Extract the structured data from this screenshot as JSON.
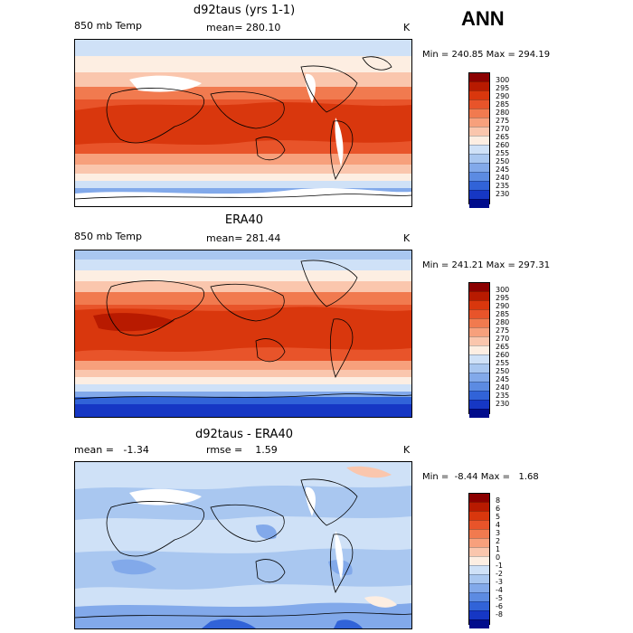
{
  "season": "ANN",
  "panels": [
    {
      "title": "d92taus (yrs 1-1)",
      "left_label": "850 mb Temp",
      "center_label": "mean= 280.10",
      "right_label": "K",
      "minmax": "Min = 240.85 Max = 294.19",
      "colorbar": {
        "levels": [
          "300",
          "295",
          "290",
          "285",
          "280",
          "275",
          "270",
          "265",
          "260",
          "255",
          "250",
          "245",
          "240",
          "235",
          "230"
        ],
        "colors": [
          "#8b0000",
          "#b81a00",
          "#d9370d",
          "#e8542a",
          "#f17a4f",
          "#f7a07c",
          "#fac6ad",
          "#fdeee2",
          "#cfe1f7",
          "#a9c7f0",
          "#82a9ea",
          "#5c8be2",
          "#3163d8",
          "#1637c4",
          "#000c8c"
        ]
      }
    },
    {
      "title": "ERA40",
      "left_label": "850 mb Temp",
      "center_label": "mean= 281.44",
      "right_label": "K",
      "minmax": "Min = 241.21 Max = 297.31",
      "colorbar": {
        "levels": [
          "300",
          "295",
          "290",
          "285",
          "280",
          "275",
          "270",
          "265",
          "260",
          "255",
          "250",
          "245",
          "240",
          "235",
          "230"
        ],
        "colors": [
          "#8b0000",
          "#b81a00",
          "#d9370d",
          "#e8542a",
          "#f17a4f",
          "#f7a07c",
          "#fac6ad",
          "#fdeee2",
          "#cfe1f7",
          "#a9c7f0",
          "#82a9ea",
          "#5c8be2",
          "#3163d8",
          "#1637c4",
          "#000c8c"
        ]
      }
    },
    {
      "title": "d92taus - ERA40",
      "left_label": "mean =   -1.34",
      "center_label": "rmse =    1.59",
      "right_label": "K",
      "minmax": "Min =  -8.44 Max =   1.68",
      "colorbar": {
        "levels": [
          "8",
          "6",
          "5",
          "4",
          "3",
          "2",
          "1",
          "0",
          "-1",
          "-2",
          "-3",
          "-4",
          "-5",
          "-6",
          "-8"
        ],
        "colors": [
          "#8b0000",
          "#b81a00",
          "#d9370d",
          "#e8542a",
          "#f17a4f",
          "#f7a07c",
          "#fac6ad",
          "#fdeee2",
          "#cfe1f7",
          "#a9c7f0",
          "#82a9ea",
          "#5c8be2",
          "#3163d8",
          "#1637c4",
          "#000c8c"
        ]
      }
    }
  ]
}
